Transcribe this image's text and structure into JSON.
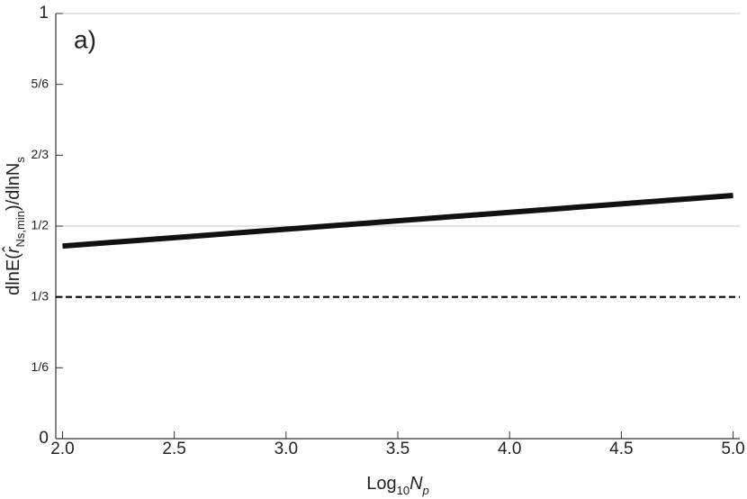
{
  "chart_data": {
    "type": "line",
    "annotation": "a)",
    "xlabel": [
      {
        "text": "Log"
      },
      {
        "text": "10",
        "sub": true
      },
      {
        "text": "N",
        "italic": true
      },
      {
        "text": "p",
        "sub": true,
        "italic": true
      }
    ],
    "ylabel": [
      {
        "text": "dlnE("
      },
      {
        "text": "r̂",
        "italic": true
      },
      {
        "text": "Ns,min",
        "sub": true
      },
      {
        "text": ")/dlnN"
      },
      {
        "text": "s",
        "sub": true
      }
    ],
    "x": [
      2,
      5
    ],
    "series": [
      {
        "color": "#111111",
        "values": [
          0.453,
          0.572
        ]
      }
    ],
    "reference_lines": [
      {
        "value": 0.3333,
        "color": "#000000",
        "dashed": true
      }
    ],
    "xlim": [
      1.97,
      5.03
    ],
    "ylim": [
      0,
      1
    ],
    "xticks": [
      {
        "value": 2,
        "label": "2.0"
      },
      {
        "value": 2.5,
        "label": "2.5"
      },
      {
        "value": 3,
        "label": "3.0"
      },
      {
        "value": 3.5,
        "label": "3.5"
      },
      {
        "value": 4,
        "label": "4.0"
      },
      {
        "value": 4.5,
        "label": "4.5"
      },
      {
        "value": 5,
        "label": "5.0"
      }
    ],
    "yticks": [
      0,
      {
        "value": 0.1667,
        "label": "1/6"
      },
      {
        "value": 0.3333,
        "label": "1/3"
      },
      {
        "value": 0.5,
        "label": "1/2"
      },
      {
        "value": 0.6667,
        "label": "2/3"
      },
      {
        "value": 0.8333,
        "label": "5/6"
      },
      1
    ],
    "ygrid": [
      0.5,
      1
    ]
  }
}
